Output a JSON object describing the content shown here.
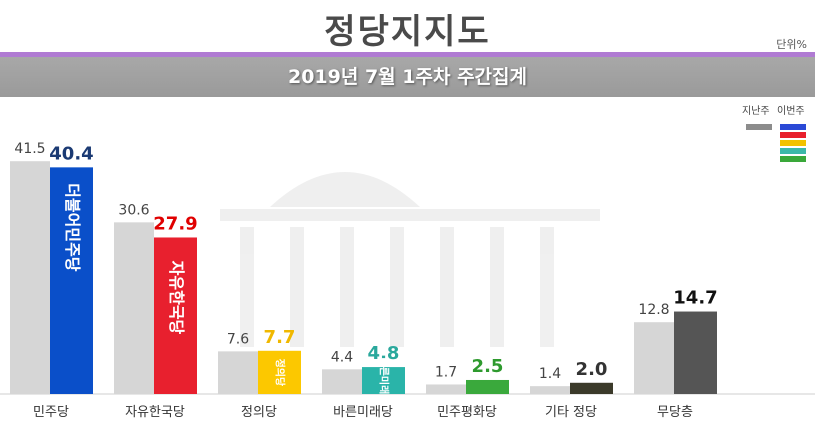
{
  "header": {
    "title": "정당지지도",
    "unit": "단위%",
    "banner": "2019년 7월 1주차 주간집계"
  },
  "legend": {
    "last_week": "지난주",
    "this_week": "이번주",
    "last_color": "#8c8c8c",
    "this_colors": [
      "#2a49d6",
      "#e8202e",
      "#f2c200",
      "#3cb8a8",
      "#3aa83a"
    ]
  },
  "chart_data": {
    "type": "bar",
    "categories": [
      "민주당",
      "자유한국당",
      "정의당",
      "바른미래당",
      "민주평화당",
      "기타 정당",
      "무당층"
    ],
    "series": [
      {
        "name": "지난주",
        "values": [
          41.5,
          30.6,
          7.6,
          4.4,
          1.7,
          1.4,
          12.8
        ]
      },
      {
        "name": "이번주",
        "values": [
          40.4,
          27.9,
          7.7,
          4.8,
          2.5,
          2.0,
          14.7
        ]
      }
    ],
    "bar_labels": [
      "더불어민주당",
      "자유한국당",
      "정의당",
      "바른미래당",
      "",
      "",
      ""
    ],
    "colors_last": "#d6d6d6",
    "colors_this": [
      "#0a4fc9",
      "#e8202e",
      "#fcc800",
      "#2ab4a9",
      "#3aa93c",
      "#3b3a2a",
      "#555555"
    ],
    "label_colors_this": [
      "#1b3a73",
      "#e00000",
      "#f0b800",
      "#2aa89c",
      "#2e9a2e",
      "#333333",
      "#111111"
    ],
    "ylim": [
      0,
      45
    ]
  }
}
